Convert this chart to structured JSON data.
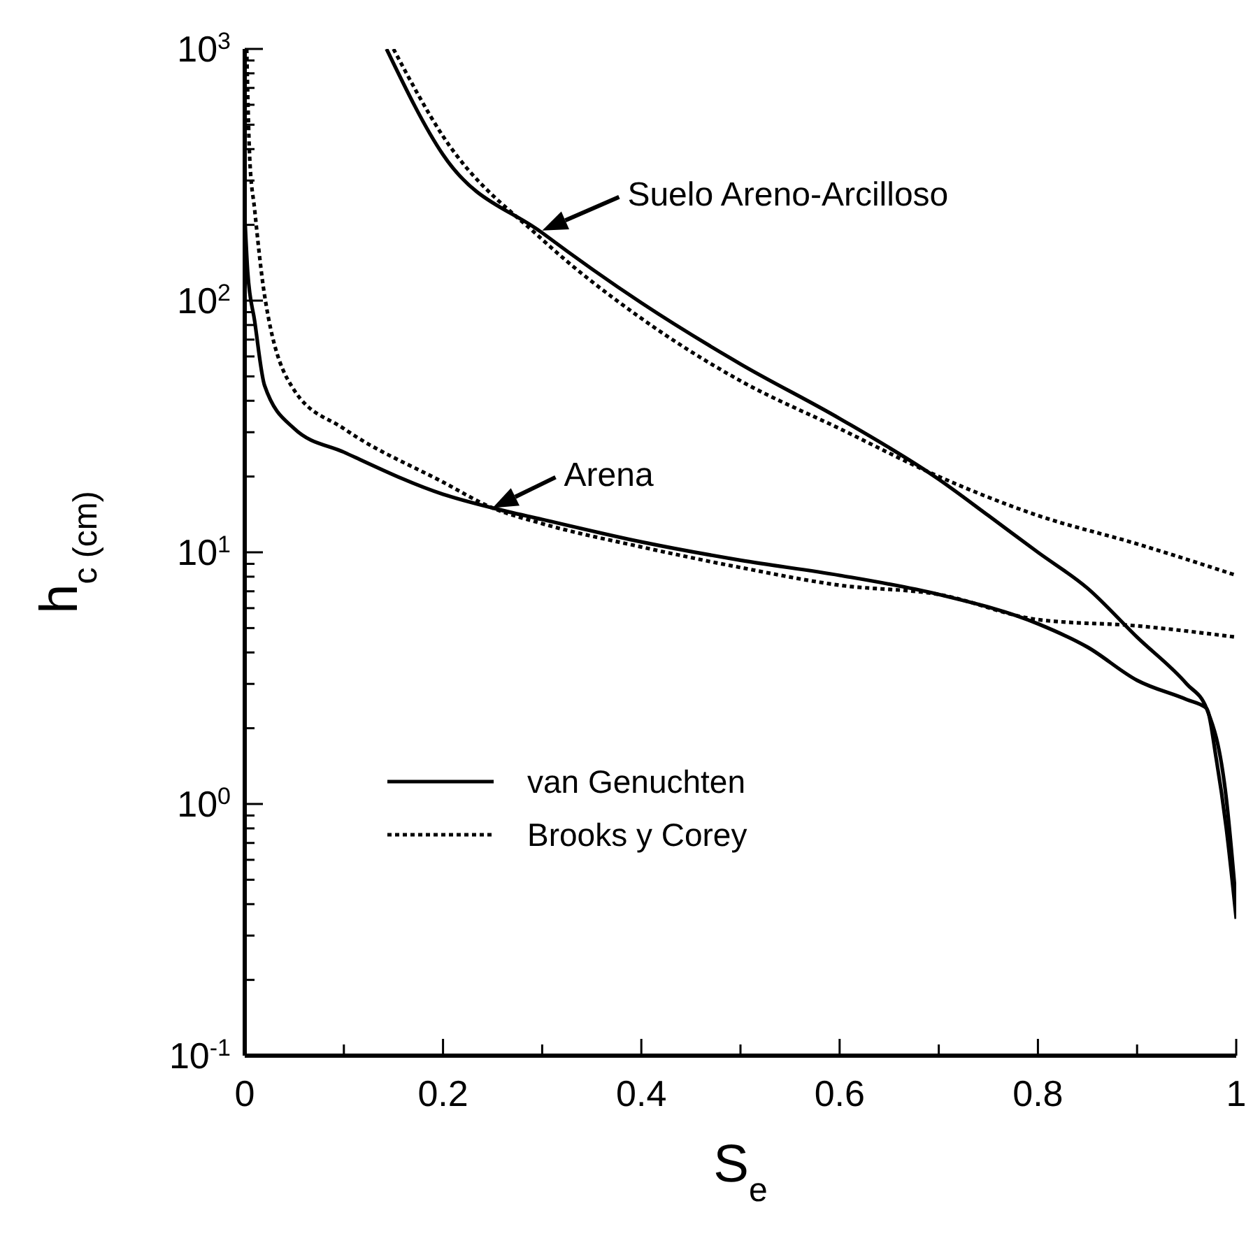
{
  "chart_data": {
    "type": "line",
    "xlabel": "S$_{e}$",
    "ylabel": "h$_{c (cm)}$",
    "log": "y",
    "xlim": [
      0,
      1
    ],
    "xticks": [
      0,
      {
        "value": 0.1,
        "label": null
      },
      0.2,
      {
        "value": 0.3,
        "label": null
      },
      0.4,
      {
        "value": 0.5,
        "label": null
      },
      0.6,
      {
        "value": 0.7,
        "label": null
      },
      0.8,
      {
        "value": 0.9,
        "label": null
      },
      1
    ],
    "ylim": [
      0.1,
      1000
    ],
    "yticks": [
      {
        "value": 0.1,
        "label": "10$^{-1}$"
      },
      {
        "value": 0.2,
        "label": null
      },
      {
        "value": 0.3,
        "label": null
      },
      {
        "value": 0.4,
        "label": null
      },
      {
        "value": 0.5,
        "label": null
      },
      {
        "value": 0.6,
        "label": null
      },
      {
        "value": 0.7,
        "label": null
      },
      {
        "value": 0.8,
        "label": null
      },
      {
        "value": 0.9,
        "label": null
      },
      {
        "value": 1,
        "label": "10$^{0}$"
      },
      {
        "value": 2,
        "label": null
      },
      {
        "value": 3,
        "label": null
      },
      {
        "value": 4,
        "label": null
      },
      {
        "value": 5,
        "label": null
      },
      {
        "value": 6,
        "label": null
      },
      {
        "value": 7,
        "label": null
      },
      {
        "value": 8,
        "label": null
      },
      {
        "value": 9,
        "label": null
      },
      {
        "value": 10,
        "label": "10$^{1}$"
      },
      {
        "value": 20,
        "label": null
      },
      {
        "value": 30,
        "label": null
      },
      {
        "value": 40,
        "label": null
      },
      {
        "value": 50,
        "label": null
      },
      {
        "value": 60,
        "label": null
      },
      {
        "value": 70,
        "label": null
      },
      {
        "value": 80,
        "label": null
      },
      {
        "value": 90,
        "label": null
      },
      {
        "value": 100,
        "label": "10$^{2}$"
      },
      {
        "value": 200,
        "label": null
      },
      {
        "value": 300,
        "label": null
      },
      {
        "value": 400,
        "label": null
      },
      {
        "value": 500,
        "label": null
      },
      {
        "value": 600,
        "label": null
      },
      {
        "value": 700,
        "label": null
      },
      {
        "value": 800,
        "label": null
      },
      {
        "value": 900,
        "label": null
      },
      {
        "value": 1000,
        "label": "10$^{3}$"
      }
    ],
    "legend": "bottom left",
    "marker": "none",
    "annotations": [
      {
        "text": "Suelo Areno-Arcilloso",
        "x": 0.3,
        "y": 190
      },
      {
        "text": "Arena",
        "x": 0.25,
        "y": 15
      }
    ],
    "series": [
      {
        "name": "van Genuchten",
        "color": "#000000",
        "line_style": "solid",
        "x": [
          0.0005,
          0.003,
          0.01,
          0.02,
          0.05,
          0.1,
          0.2,
          0.25,
          0.3,
          0.4,
          0.5,
          0.6,
          0.7,
          0.8,
          0.85,
          0.9,
          0.95,
          0.97,
          0.98,
          0.99,
          1
        ],
        "values": [
          200,
          130,
          83,
          46,
          31,
          25,
          17,
          15,
          13.5,
          11,
          9.3,
          8.1,
          6.8,
          5.2,
          4.2,
          3.1,
          2.6,
          2.4,
          1.5,
          0.8,
          0.35
        ]
      },
      {
        "color": "#000000",
        "line_style": "solid",
        "x": [
          0.143,
          0.2,
          0.3,
          0.4,
          0.5,
          0.6,
          0.7,
          0.75,
          0.8,
          0.85,
          0.9,
          0.95,
          0.97,
          0.99,
          1
        ],
        "values": [
          1000,
          380,
          186,
          98,
          56,
          34,
          19.5,
          14,
          10,
          7.2,
          4.6,
          3.0,
          2.4,
          1.05,
          0.4
        ]
      },
      {
        "name": "Brooks y Corey",
        "color": "#000000",
        "line_style": "dotted",
        "x": [
          0.002,
          0.005,
          0.01,
          0.02,
          0.05,
          0.1,
          0.2,
          0.25,
          0.3,
          0.4,
          0.5,
          0.6,
          0.7,
          0.8,
          0.9,
          1
        ],
        "values": [
          1000,
          370,
          230,
          105,
          44,
          31,
          19,
          15,
          13,
          10.5,
          8.7,
          7.4,
          6.8,
          5.4,
          5.1,
          4.6
        ]
      },
      {
        "color": "#000000",
        "line_style": "dotted",
        "x": [
          0.15,
          0.2,
          0.3,
          0.4,
          0.5,
          0.6,
          0.7,
          0.8,
          0.9,
          1
        ],
        "values": [
          1000,
          450,
          175,
          85,
          48,
          31,
          20,
          14,
          10.8,
          8.1
        ]
      }
    ]
  }
}
